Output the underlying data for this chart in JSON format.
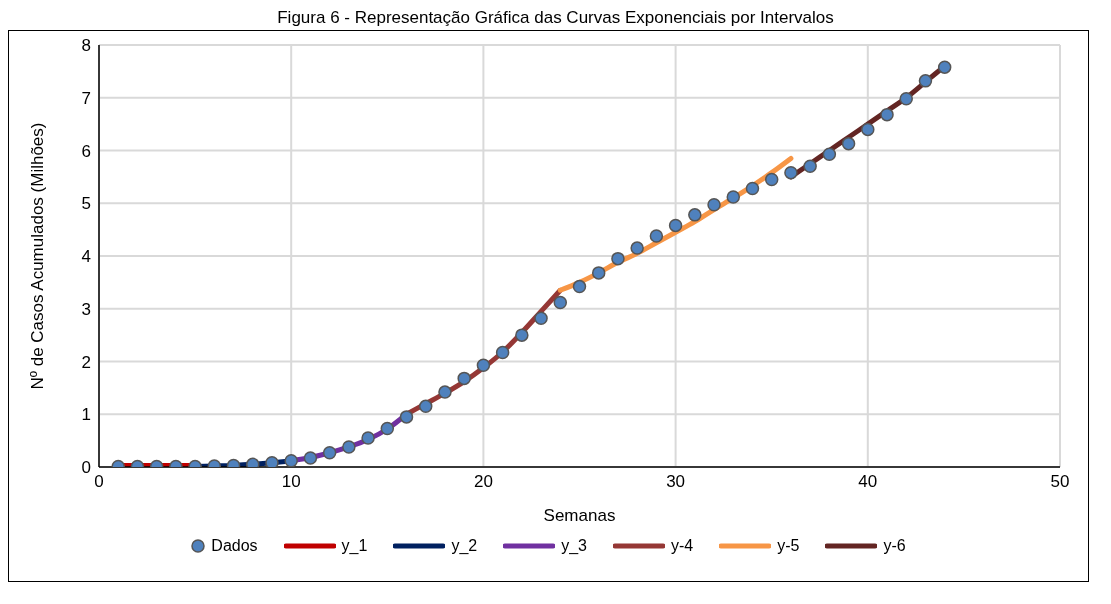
{
  "chart_data": {
    "type": "scatter",
    "title": "Figura 6 - Representação Gráfica das Curvas Exponenciais por Intervalos",
    "xlabel": "Semanas",
    "ylabel": "Nº de Casos Acumulados  (Milhões)",
    "xlim": [
      0,
      50
    ],
    "xticks": [
      0,
      10,
      20,
      30,
      40,
      50
    ],
    "ylim": [
      0,
      8
    ],
    "yticks": [
      0,
      1,
      2,
      3,
      4,
      5,
      6,
      7,
      8
    ],
    "grid": true,
    "legend": "bottom",
    "series": [
      {
        "name": "Dados",
        "marker": "circle",
        "color": "#4f81bd",
        "x": [
          1,
          2,
          3,
          4,
          5,
          6,
          7,
          8,
          9,
          10,
          11,
          12,
          13,
          14,
          15,
          16,
          17,
          18,
          19,
          20,
          21,
          22,
          23,
          24,
          25,
          26,
          27,
          28,
          29,
          30,
          31,
          32,
          33,
          34,
          35,
          36,
          37,
          38,
          39,
          40,
          41,
          42,
          43,
          44
        ],
        "values": [
          0.01,
          0.01,
          0.01,
          0.01,
          0.01,
          0.02,
          0.03,
          0.05,
          0.08,
          0.12,
          0.17,
          0.27,
          0.38,
          0.55,
          0.73,
          0.95,
          1.15,
          1.42,
          1.68,
          1.93,
          2.17,
          2.5,
          2.82,
          3.12,
          3.42,
          3.68,
          3.95,
          4.15,
          4.38,
          4.58,
          4.78,
          4.97,
          5.12,
          5.28,
          5.45,
          5.58,
          5.7,
          5.93,
          6.13,
          6.4,
          6.68,
          6.98,
          7.32,
          7.58
        ]
      },
      {
        "name": "y_1",
        "type": "line",
        "marker": "none",
        "color": "#c00000",
        "x": [
          1,
          2,
          3,
          4,
          5
        ],
        "values": [
          0.03,
          0.03,
          0.03,
          0.03,
          0.03
        ]
      },
      {
        "name": "y_2",
        "type": "line",
        "marker": "none",
        "color": "#002060",
        "x": [
          5,
          6,
          7,
          8,
          9,
          10
        ],
        "values": [
          0.01,
          0.02,
          0.03,
          0.05,
          0.08,
          0.12
        ]
      },
      {
        "name": "y_3",
        "type": "line",
        "marker": "none",
        "color": "#7030a0",
        "x": [
          10,
          11,
          12,
          13,
          14,
          15,
          16
        ],
        "values": [
          0.12,
          0.18,
          0.27,
          0.38,
          0.52,
          0.72,
          1.0
        ]
      },
      {
        "name": "y-4",
        "type": "line",
        "marker": "none",
        "color": "#953735",
        "x": [
          16,
          17,
          18,
          19,
          20,
          21,
          22,
          23,
          24
        ],
        "values": [
          1.0,
          1.2,
          1.4,
          1.62,
          1.88,
          2.18,
          2.55,
          2.95,
          3.35
        ]
      },
      {
        "name": "y-5",
        "type": "line",
        "marker": "none",
        "color": "#f79646",
        "x": [
          24,
          25,
          26,
          27,
          28,
          29,
          30,
          31,
          32,
          33,
          34,
          35,
          36
        ],
        "values": [
          3.35,
          3.5,
          3.68,
          3.88,
          4.05,
          4.25,
          4.45,
          4.65,
          4.88,
          5.1,
          5.33,
          5.58,
          5.85
        ]
      },
      {
        "name": "y-6",
        "type": "line",
        "marker": "none",
        "color": "#632523",
        "x": [
          36,
          37,
          38,
          39,
          40,
          41,
          42,
          43,
          44
        ],
        "values": [
          5.5,
          5.75,
          6.0,
          6.25,
          6.5,
          6.75,
          7.0,
          7.3,
          7.6
        ]
      }
    ]
  }
}
